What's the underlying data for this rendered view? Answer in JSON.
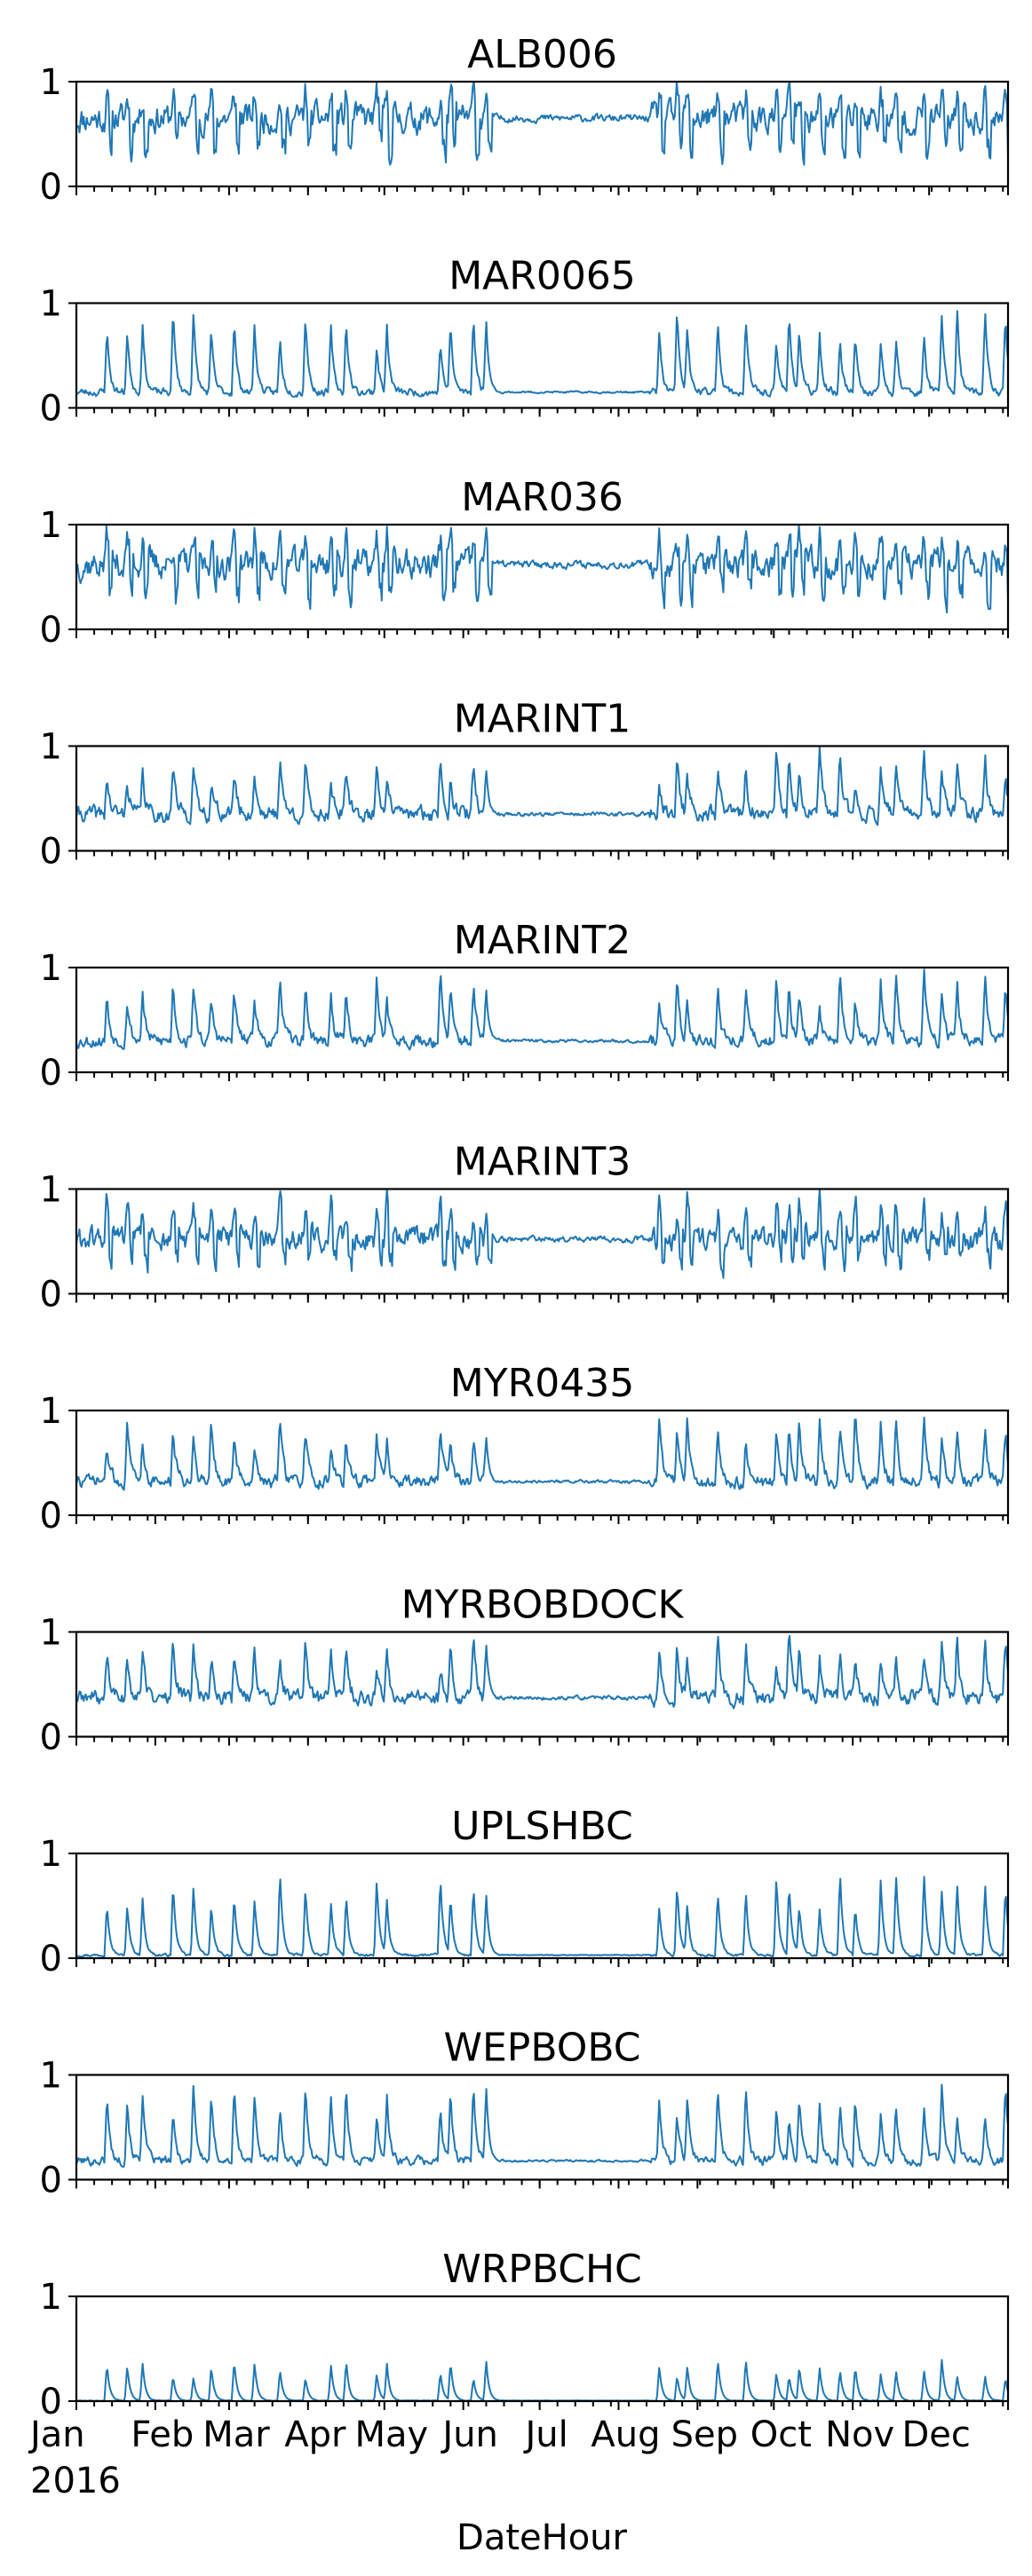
{
  "chart_data": {
    "type": "line",
    "layout": "small-multiples",
    "xlabel": "DateHour",
    "x_range": [
      "2016-01-01",
      "2016-12-31"
    ],
    "x_tick_labels": [
      "Jan",
      "Feb",
      "Mar",
      "Apr",
      "May",
      "Jun",
      "Jul",
      "Aug",
      "Sep",
      "Oct",
      "Nov",
      "Dec"
    ],
    "x_year_label": "2016",
    "ylim": [
      0,
      1
    ],
    "y_tick_labels": [
      "0",
      "1"
    ],
    "color": "#1f77b4",
    "panels": [
      {
        "title": "ALB006",
        "base": 0.65,
        "season": 0.22,
        "spike": 0.3,
        "seed": 11
      },
      {
        "title": "MAR0065",
        "base": 0.15,
        "season": 0.06,
        "spike": 0.8,
        "seed": 23
      },
      {
        "title": "MAR036",
        "base": 0.62,
        "season": 0.22,
        "spike": 0.35,
        "seed": 37
      },
      {
        "title": "MARINT1",
        "base": 0.35,
        "season": 0.12,
        "spike": 0.62,
        "seed": 41
      },
      {
        "title": "MARINT2",
        "base": 0.3,
        "season": 0.1,
        "spike": 0.68,
        "seed": 53
      },
      {
        "title": "MARINT3",
        "base": 0.52,
        "season": 0.18,
        "spike": 0.45,
        "seed": 61
      },
      {
        "title": "MYR0435",
        "base": 0.32,
        "season": 0.1,
        "spike": 0.66,
        "seed": 73
      },
      {
        "title": "MYRBOBDOCK",
        "base": 0.37,
        "season": 0.12,
        "spike": 0.6,
        "seed": 89
      },
      {
        "title": "UPLSHBC",
        "base": 0.03,
        "season": 0.02,
        "spike": 0.8,
        "seed": 97
      },
      {
        "title": "WEPBOBC",
        "base": 0.18,
        "season": 0.07,
        "spike": 0.78,
        "seed": 101
      },
      {
        "title": "WRPBCHC",
        "base": 0.005,
        "season": 0.005,
        "spike": 0.4,
        "seed": 113
      }
    ]
  }
}
